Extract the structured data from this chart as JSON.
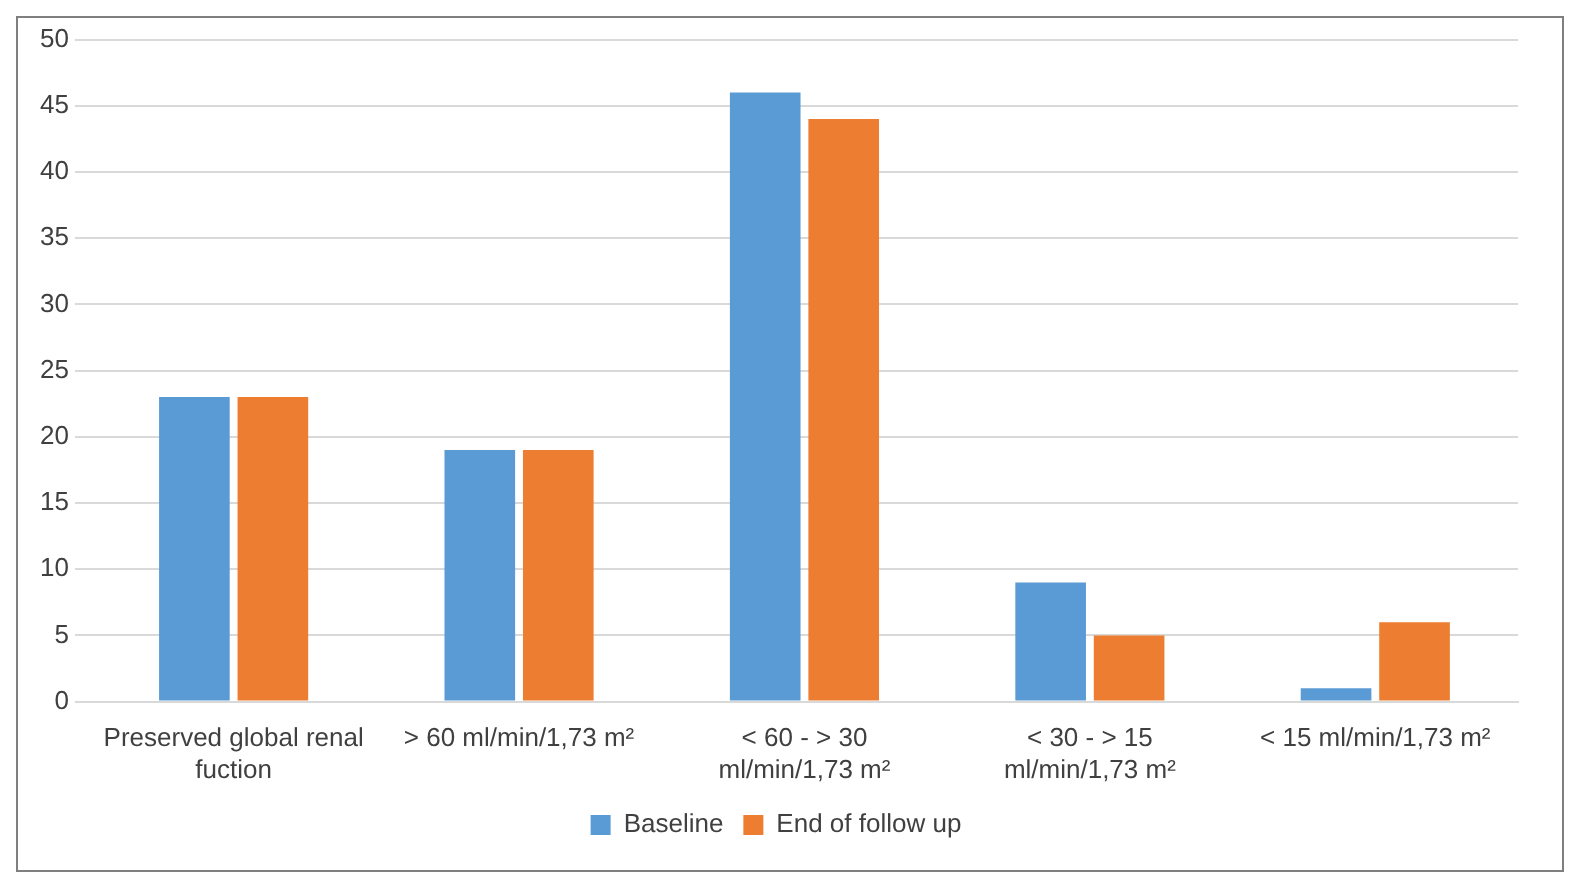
{
  "chart_data": {
    "type": "bar",
    "categories": [
      "Preserved global renal fuction",
      "> 60 ml/min/1,73 m²",
      "< 60 - > 30 ml/min/1,73 m²",
      "< 30 - > 15 ml/min/1,73 m²",
      "< 15 ml/min/1,73 m²"
    ],
    "series": [
      {
        "name": "Baseline",
        "color": "#5b9bd5",
        "values": [
          23,
          19,
          46,
          9,
          1
        ]
      },
      {
        "name": "End of follow up",
        "color": "#ed7d31",
        "values": [
          23,
          19,
          44,
          5,
          6
        ]
      }
    ],
    "ylim": [
      0,
      50
    ],
    "yticks": [
      0,
      5,
      10,
      15,
      20,
      25,
      30,
      35,
      40,
      45,
      50
    ],
    "grid": "y",
    "legend": "bottom"
  }
}
